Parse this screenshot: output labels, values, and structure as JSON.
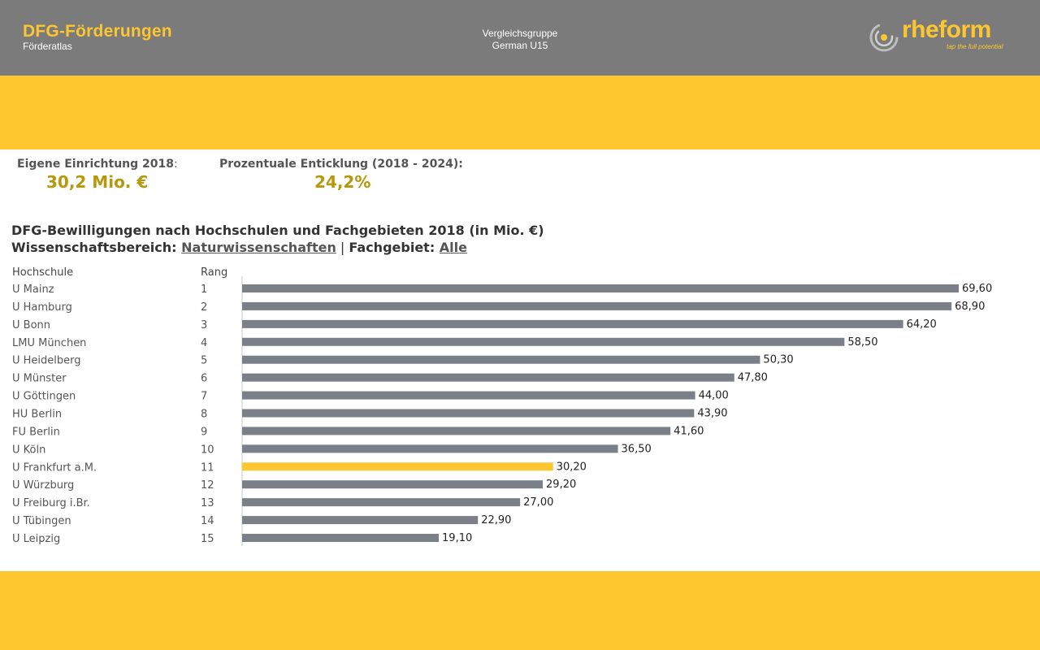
{
  "header": {
    "title": "DFG-Förderungen",
    "subtitle": "Förderatlas",
    "group_label": "Vergleichsgruppe",
    "group_value": "German U15",
    "logo_text": "rheform",
    "logo_tagline": "tap the full potential",
    "logo_icon": "rheform-ring-icon"
  },
  "kpis": {
    "own_label": "Eigene Einrichtung 2018",
    "own_colon": ":",
    "own_value": "30,2 Mio. €",
    "growth_label": "Prozentuale Enticklung (2018 - 2024):",
    "growth_value": "24,2%"
  },
  "chart": {
    "title_line1": "DFG-Bewilligungen nach Hochschulen und Fachgebieten 2018 (in Mio. €)",
    "field_label": "Wissenschaftsbereich: ",
    "field_value": "Naturwissenschaften",
    "separator": " | ",
    "subject_label": "Fachgebiet: ",
    "subject_value": "Alle",
    "col_university": "Hochschule",
    "col_rank": "Rang"
  },
  "colors": {
    "bar_default": "#7a7f88",
    "bar_highlight": "#fcc630",
    "accent": "#b8970b"
  },
  "chart_data": {
    "type": "bar",
    "orientation": "horizontal",
    "categories": [
      "U Mainz",
      "U Hamburg",
      "U Bonn",
      "LMU München",
      "U Heidelberg",
      "U Münster",
      "U Göttingen",
      "HU Berlin",
      "FU Berlin",
      "U Köln",
      "U Frankfurt a.M.",
      "U Würzburg",
      "U Freiburg i.Br.",
      "U Tübingen",
      "U Leipzig"
    ],
    "ranks": [
      "1",
      "2",
      "3",
      "4",
      "5",
      "6",
      "7",
      "8",
      "9",
      "10",
      "11",
      "12",
      "13",
      "14",
      "15"
    ],
    "values": [
      69.6,
      68.9,
      64.2,
      58.5,
      50.3,
      47.8,
      44.0,
      43.9,
      41.6,
      36.5,
      30.2,
      29.2,
      27.0,
      22.9,
      19.1
    ],
    "value_labels": [
      "69,60",
      "68,90",
      "64,20",
      "58,50",
      "50,30",
      "47,80",
      "44,00",
      "43,90",
      "41,60",
      "36,50",
      "30,20",
      "29,20",
      "27,00",
      "22,90",
      "19,10"
    ],
    "highlight_category": "U Frankfurt a.M.",
    "xlim": [
      0,
      69.6
    ],
    "grid": false,
    "legend": "none"
  }
}
